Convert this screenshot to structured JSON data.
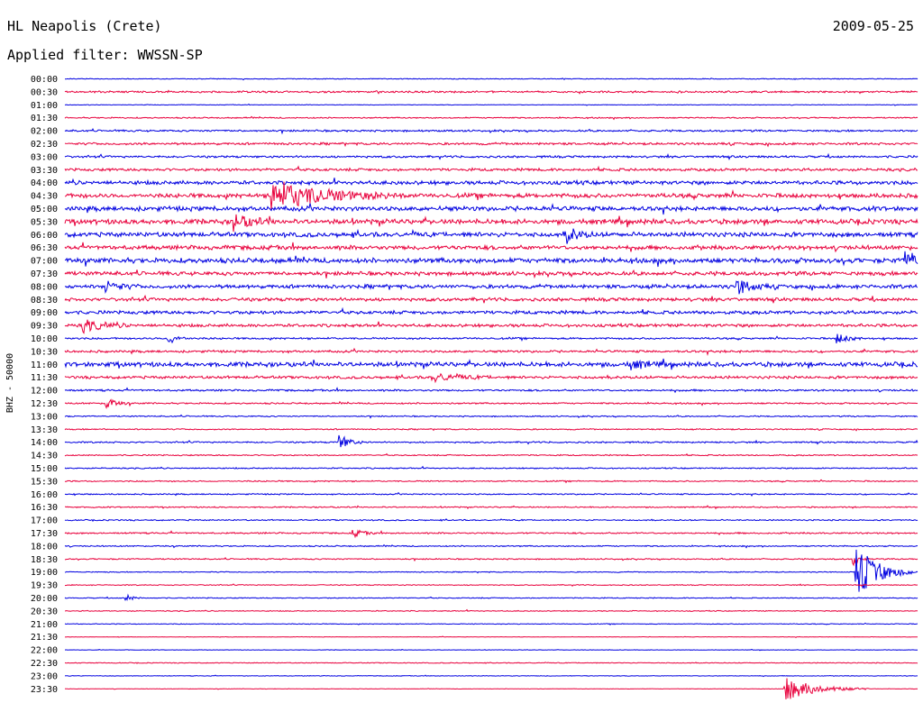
{
  "header": {
    "station": "HL Neapolis (Crete)",
    "date": "2009-05-25",
    "filter": "Applied filter: WWSSN-SP"
  },
  "chart_data": {
    "type": "line",
    "title": "HL Neapolis (Crete)",
    "subtitle": "Applied filter: WWSSN-SP",
    "date": "2009-05-25",
    "ylabel": "BHZ - 50000",
    "xlabel": "",
    "row_labels": [
      "00:00",
      "00:30",
      "01:00",
      "01:30",
      "02:00",
      "02:30",
      "03:00",
      "03:30",
      "04:00",
      "04:30",
      "05:00",
      "05:30",
      "06:00",
      "06:30",
      "07:00",
      "07:30",
      "08:00",
      "08:30",
      "09:00",
      "09:30",
      "10:00",
      "10:30",
      "11:00",
      "11:30",
      "12:00",
      "12:30",
      "13:00",
      "13:30",
      "14:00",
      "14:30",
      "15:00",
      "15:30",
      "16:00",
      "16:30",
      "17:00",
      "17:30",
      "18:00",
      "18:30",
      "19:00",
      "19:30",
      "20:00",
      "20:30",
      "21:00",
      "21:30",
      "22:00",
      "22:30",
      "23:00",
      "23:30"
    ],
    "row_colors": [
      "#0000e0",
      "#e8003c"
    ],
    "noise_level": [
      0.05,
      0.12,
      0.04,
      0.08,
      0.12,
      0.15,
      0.14,
      0.18,
      0.25,
      0.28,
      0.3,
      0.32,
      0.3,
      0.28,
      0.32,
      0.25,
      0.25,
      0.22,
      0.22,
      0.2,
      0.12,
      0.15,
      0.3,
      0.18,
      0.12,
      0.1,
      0.08,
      0.08,
      0.1,
      0.08,
      0.08,
      0.08,
      0.08,
      0.08,
      0.08,
      0.1,
      0.08,
      0.08,
      0.06,
      0.06,
      0.06,
      0.06,
      0.05,
      0.03,
      0.03,
      0.05,
      0.04,
      0.03
    ],
    "events": [
      {
        "row": 9,
        "minute": 7.2,
        "amplitude": 2.6,
        "duration": 1.6
      },
      {
        "row": 11,
        "minute": 5.9,
        "amplitude": 1.6,
        "duration": 0.5
      },
      {
        "row": 12,
        "minute": 17.6,
        "amplitude": 1.3,
        "duration": 0.4
      },
      {
        "row": 14,
        "minute": 29.5,
        "amplitude": 1.5,
        "duration": 0.6
      },
      {
        "row": 16,
        "minute": 23.6,
        "amplitude": 1.6,
        "duration": 0.4
      },
      {
        "row": 16,
        "minute": 1.4,
        "amplitude": 1.1,
        "duration": 0.4
      },
      {
        "row": 19,
        "minute": 0.6,
        "amplitude": 1.1,
        "duration": 0.6
      },
      {
        "row": 20,
        "minute": 3.6,
        "amplitude": 1.0,
        "duration": 0.3
      },
      {
        "row": 20,
        "minute": 27.1,
        "amplitude": 0.9,
        "duration": 0.4
      },
      {
        "row": 22,
        "minute": 19.8,
        "amplitude": 0.8,
        "duration": 0.5
      },
      {
        "row": 23,
        "minute": 12.9,
        "amplitude": 0.7,
        "duration": 0.8
      },
      {
        "row": 25,
        "minute": 1.4,
        "amplitude": 1.2,
        "duration": 0.3
      },
      {
        "row": 28,
        "minute": 9.6,
        "amplitude": 1.6,
        "duration": 0.3
      },
      {
        "row": 35,
        "minute": 10.1,
        "amplitude": 0.8,
        "duration": 0.3
      },
      {
        "row": 37,
        "minute": 27.7,
        "amplitude": 1.2,
        "duration": 0.2
      },
      {
        "row": 38,
        "minute": 27.8,
        "amplitude": 4.6,
        "duration": 0.7
      },
      {
        "row": 40,
        "minute": 2.1,
        "amplitude": 0.8,
        "duration": 0.2
      },
      {
        "row": 47,
        "minute": 25.3,
        "amplitude": 1.9,
        "duration": 1.0
      }
    ]
  }
}
